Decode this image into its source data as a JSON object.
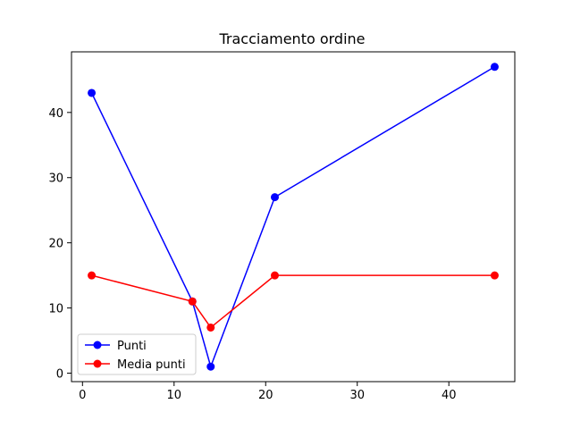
{
  "chart_data": {
    "type": "line",
    "title": "Tracciamento ordine",
    "xlabel": "",
    "ylabel": "",
    "xlim": [
      -1.2,
      47.2
    ],
    "ylim": [
      -1.3,
      49.3
    ],
    "xticks": [
      0,
      10,
      20,
      30,
      40
    ],
    "yticks": [
      0,
      10,
      20,
      30,
      40
    ],
    "grid": false,
    "legend_position": "lower-left",
    "series": [
      {
        "name": "Punti",
        "color": "#0000ff",
        "x": [
          1,
          12,
          14,
          21,
          45
        ],
        "y": [
          43,
          11,
          1,
          27,
          47
        ]
      },
      {
        "name": "Media punti",
        "color": "#ff0000",
        "x": [
          1,
          12,
          14,
          21,
          45
        ],
        "y": [
          15,
          11,
          7,
          15,
          15
        ]
      }
    ]
  }
}
